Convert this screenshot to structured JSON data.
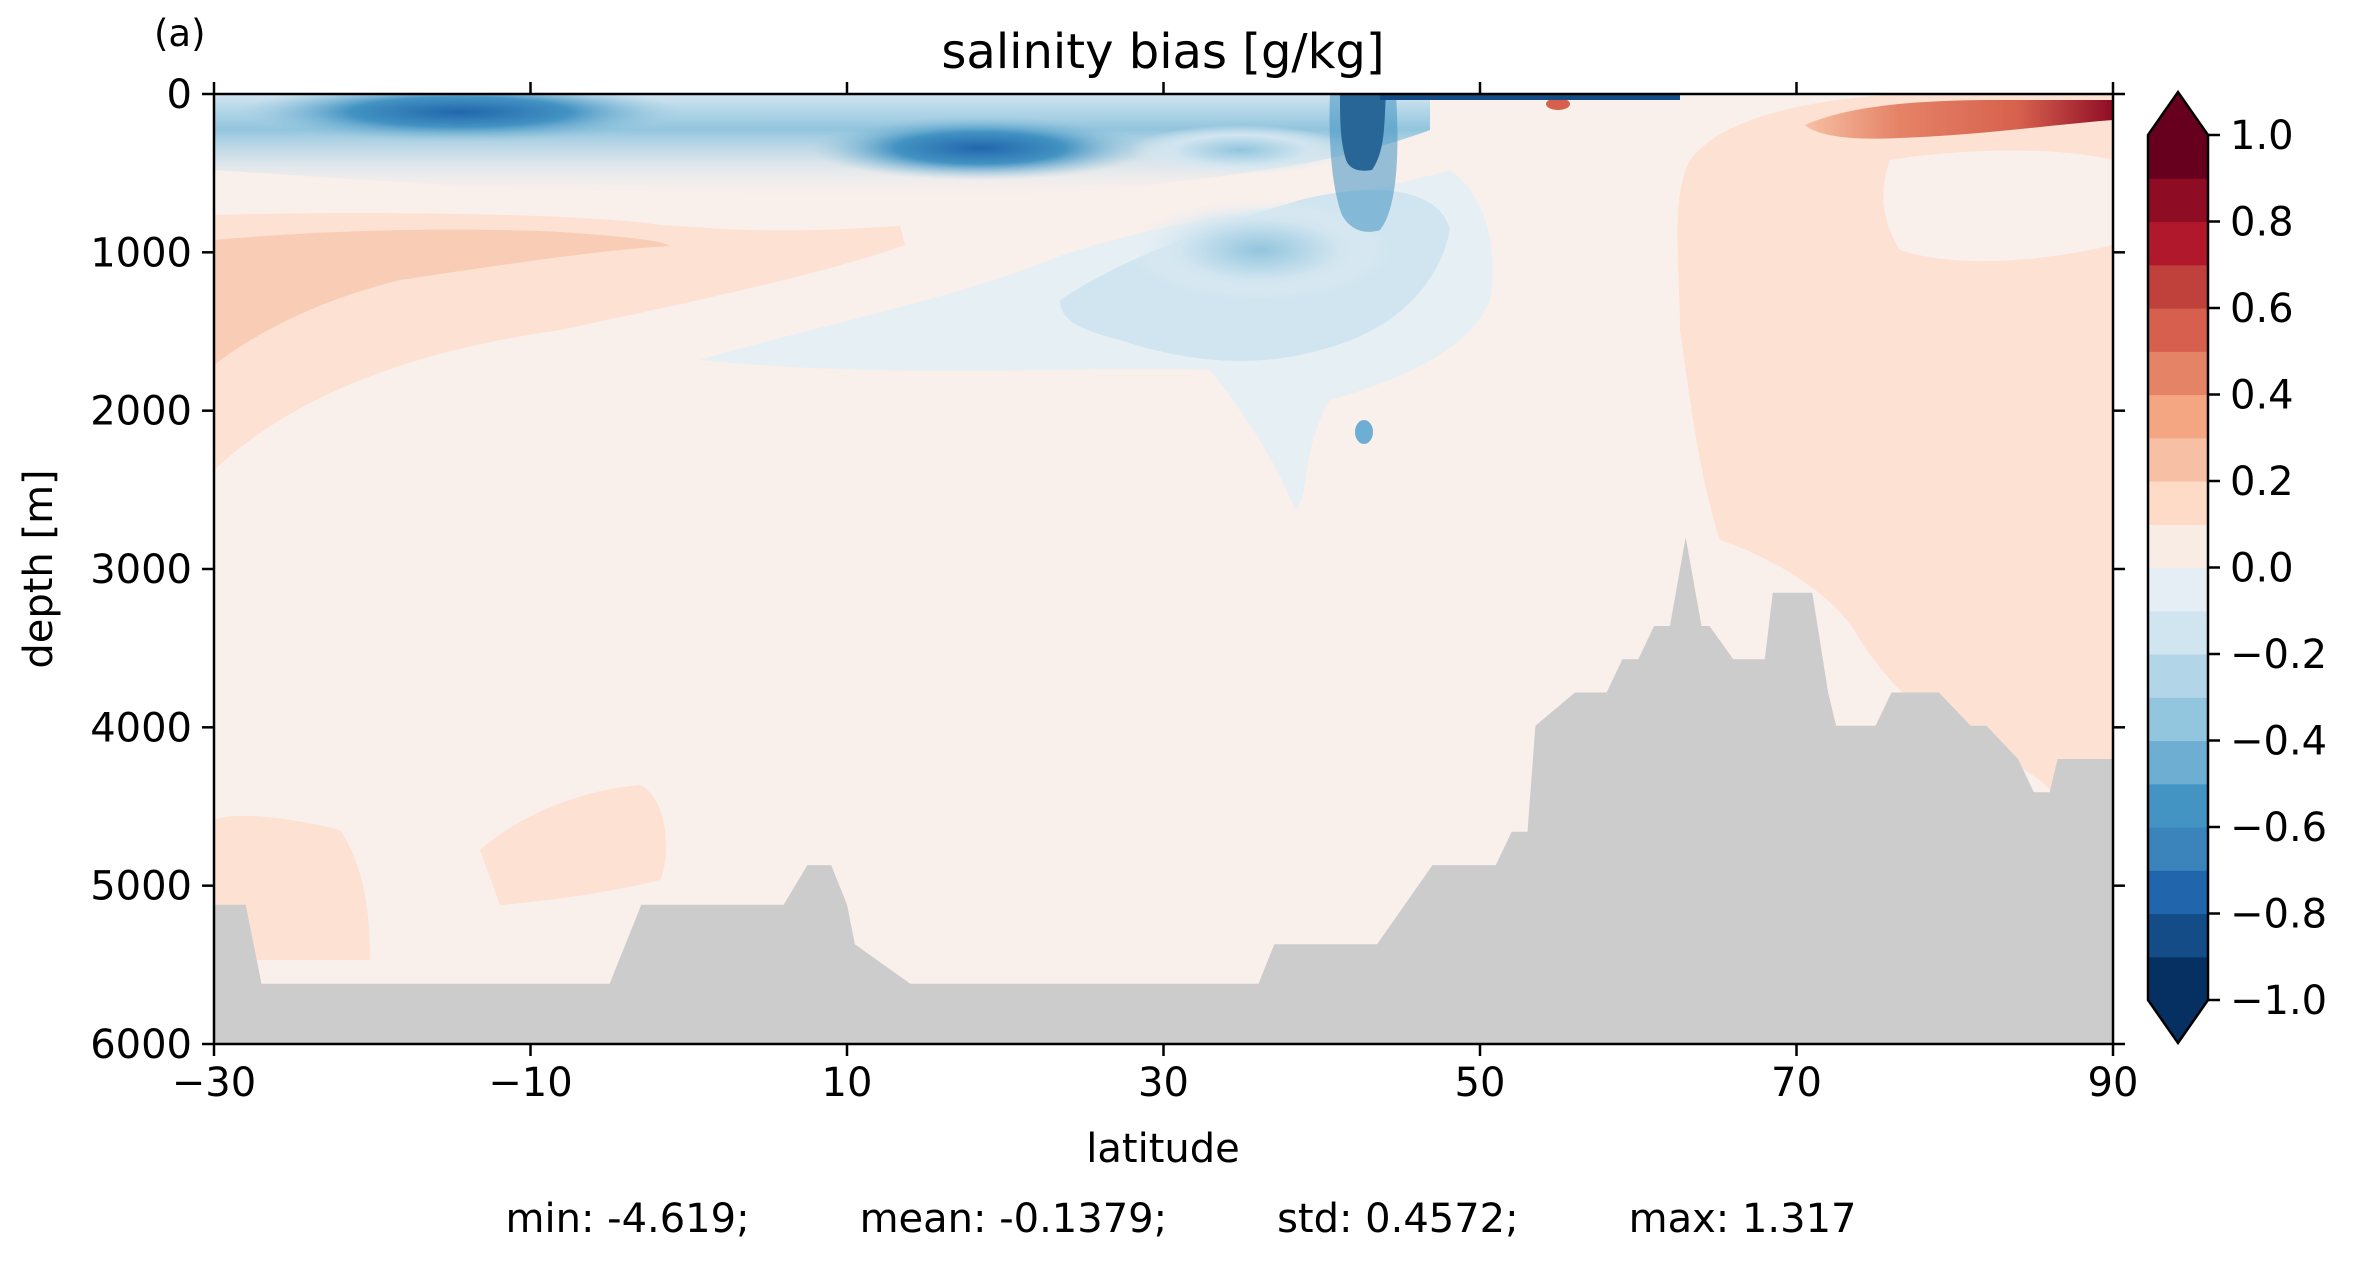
{
  "panel_label": "(a)",
  "stats": {
    "min": "min: -4.619;",
    "mean": "mean: -0.1379;",
    "std": "std: 0.4572;",
    "max": "max: 1.317"
  },
  "chart_data": {
    "type": "heatmap",
    "title": "salinity bias [g/kg]",
    "xlabel": "latitude",
    "ylabel": "depth [m]",
    "xlim": [
      -30,
      90
    ],
    "ylim": [
      6000,
      0
    ],
    "xticks": [
      -30,
      -10,
      10,
      30,
      50,
      70,
      90
    ],
    "xtick_labels": [
      "−30",
      "−10",
      "10",
      "30",
      "50",
      "70",
      "90"
    ],
    "yticks": [
      0,
      1000,
      2000,
      3000,
      4000,
      5000,
      6000
    ],
    "ytick_labels": [
      "0",
      "1000",
      "2000",
      "3000",
      "4000",
      "5000",
      "6000"
    ],
    "colorbar": {
      "levels": [
        -1.0,
        -0.9,
        -0.8,
        -0.7,
        -0.6,
        -0.5,
        -0.4,
        -0.3,
        -0.2,
        -0.1,
        0.0,
        0.1,
        0.2,
        0.3,
        0.4,
        0.5,
        0.6,
        0.7,
        0.8,
        0.9,
        1.0
      ],
      "ticks": [
        1.0,
        0.8,
        0.6,
        0.4,
        0.2,
        0.0,
        -0.2,
        -0.4,
        -0.6,
        -0.8,
        -1.0
      ],
      "tick_labels": [
        "1.0",
        "0.8",
        "0.6",
        "0.4",
        "0.2",
        "0.0",
        "−0.2",
        "−0.4",
        "−0.6",
        "−0.8",
        "−1.0"
      ],
      "colors": [
        "#053061",
        "#134c87",
        "#2166ac",
        "#3a83bb",
        "#4393c3",
        "#6eaed2",
        "#92c5de",
        "#b2d5e7",
        "#d1e5f0",
        "#e4eef4",
        "#f7f7f7",
        "#f9ece5",
        "#fddbc7",
        "#f7c0a4",
        "#f4a582",
        "#e58367",
        "#d6604d",
        "#c0403b",
        "#b2182b",
        "#8f0c25",
        "#67001f"
      ],
      "extend": "both"
    },
    "bathymetry": {
      "lat": [
        -30,
        -28,
        -27,
        -26,
        -25,
        -24,
        -23,
        -22,
        -21,
        -20,
        -19,
        -18,
        -17,
        -5,
        -4,
        -3,
        -2,
        -1,
        4,
        4.5,
        6,
        7.5,
        9,
        10,
        10.5,
        14,
        16,
        16.5,
        30,
        30.5,
        36,
        37,
        37.5,
        42,
        43,
        43.5,
        47,
        48,
        48.5,
        51,
        52,
        52.5,
        53,
        53.5,
        56,
        57,
        57.5,
        58,
        59,
        60,
        61,
        62,
        63,
        64,
        64.5,
        66,
        67,
        68,
        68.5,
        71,
        72,
        72.5,
        74,
        75,
        76,
        77.5,
        79,
        81,
        82,
        84,
        85,
        86,
        86.5,
        90
      ],
      "depth": [
        5120,
        5120,
        5620,
        5620,
        5620,
        5620,
        5620,
        5620,
        5620,
        5620,
        5620,
        5620,
        5620,
        5620,
        5370,
        5120,
        5120,
        5120,
        5120,
        5120,
        5120,
        4870,
        4870,
        5120,
        5370,
        5620,
        5620,
        5620,
        5620,
        5620,
        5620,
        5370,
        5370,
        5370,
        5370,
        5370,
        4870,
        4870,
        4870,
        4870,
        4660,
        4660,
        4660,
        3990,
        3780,
        3780,
        3780,
        3780,
        3570,
        3570,
        3360,
        3360,
        2800,
        3360,
        3360,
        3570,
        3570,
        3570,
        3150,
        3150,
        3780,
        3990,
        3990,
        3990,
        3780,
        3780,
        3780,
        3990,
        3990,
        4200,
        4410,
        4410,
        4200,
        4200
      ]
    },
    "fields": [
      {
        "lat": [
          -15,
          18
        ],
        "depth": [
          80,
          450
        ],
        "value": -0.35
      },
      {
        "lat": [
          10,
          42
        ],
        "depth": [
          100,
          450
        ],
        "value": -0.5
      },
      {
        "lat": [
          42,
          44
        ],
        "depth": [
          0,
          450
        ],
        "value": -1.0
      },
      {
        "lat": [
          -30,
          15
        ],
        "depth": [
          800,
          1700
        ],
        "value": 0.25
      },
      {
        "lat": [
          62,
          90
        ],
        "depth": [
          0,
          4700
        ],
        "value": 0.15
      },
      {
        "lat": [
          74,
          90
        ],
        "depth": [
          0,
          150
        ],
        "value": 0.8
      }
    ]
  }
}
